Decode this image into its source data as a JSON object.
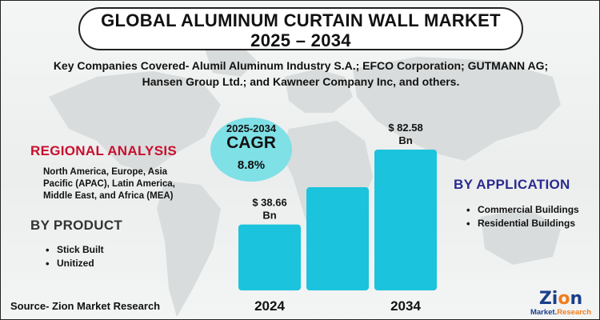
{
  "header": {
    "title_line1": "GLOBAL ALUMINUM CURTAIN WALL MARKET",
    "title_line2": "2025 – 2034",
    "companies_line1": "Key Companies Covered- Alumil Aluminum Industry S.A.; EFCO Corporation; GUTMANN AG;",
    "companies_line2": "Hansen Group Ltd.; and Kawneer Company Inc, and others."
  },
  "regional": {
    "heading": "REGIONAL ANALYSIS",
    "text_line1": "North America, Europe, Asia",
    "text_line2": "Pacific (APAC), Latin America,",
    "text_line3": "Middle East, and Africa (MEA)"
  },
  "product": {
    "heading": "BY PRODUCT",
    "items": [
      "Stick Built",
      "Unitized"
    ]
  },
  "application": {
    "heading": "BY APPLICATION",
    "items": [
      "Commercial Buildings",
      "Residential Buildings"
    ]
  },
  "cagr": {
    "period": "2025-2034",
    "label": "CAGR",
    "value": "8.8%"
  },
  "chart_data": {
    "type": "bar",
    "categories": [
      "2024",
      "",
      "2034"
    ],
    "values": [
      38.66,
      60.5,
      82.58
    ],
    "data_labels": [
      [
        "$ 38.66",
        "Bn"
      ],
      null,
      [
        "$ 82.58",
        "Bn"
      ]
    ],
    "bar_color": "#1bc3dc",
    "ylim": [
      0,
      90
    ],
    "title": "",
    "xlabel": "",
    "ylabel": ""
  },
  "footer": {
    "source": "Source- Zion Market Research",
    "logo_main_a": "Zi",
    "logo_main_o": "o",
    "logo_main_b": "n",
    "logo_sub_a": "Market.",
    "logo_sub_b": "Research"
  },
  "colors": {
    "red_heading": "#c8102e",
    "blue_heading": "#2b2a8f",
    "circle": "#7fe0e6"
  }
}
